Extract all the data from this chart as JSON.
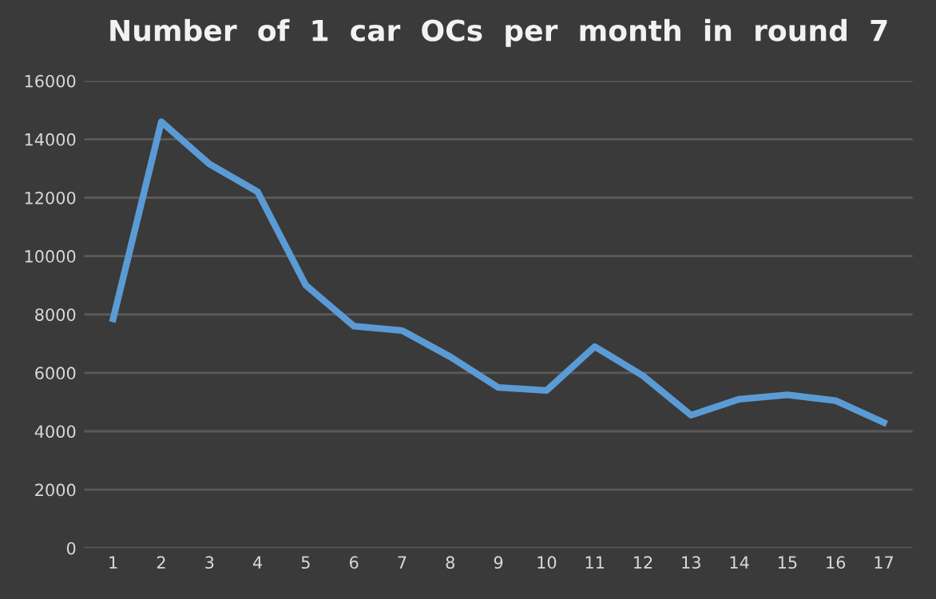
{
  "chart_data": {
    "type": "line",
    "title": "Number  of  1  car  OCs  per  month  in  round  7",
    "categories": [
      "1",
      "2",
      "3",
      "4",
      "5",
      "6",
      "7",
      "8",
      "9",
      "10",
      "11",
      "12",
      "13",
      "14",
      "15",
      "16",
      "17"
    ],
    "series": [
      {
        "color": "#5b9bd5",
        "values": [
          7850,
          14600,
          13150,
          12200,
          9000,
          7600,
          7450,
          6550,
          5500,
          5400,
          6900,
          5900,
          4550,
          5100,
          5250,
          5050,
          4300
        ]
      }
    ],
    "ylim": [
      0,
      16000
    ],
    "yticks": [
      0,
      2000,
      4000,
      6000,
      8000,
      10000,
      12000,
      14000,
      16000
    ],
    "grid": "y",
    "marker": "none",
    "line_style": "solid"
  }
}
